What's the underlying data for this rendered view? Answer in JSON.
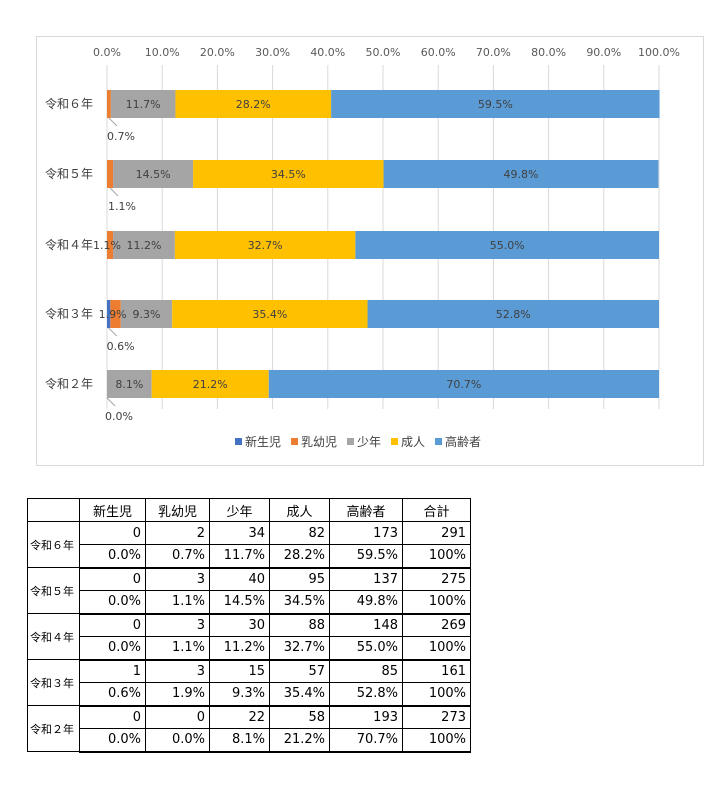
{
  "chart_data": {
    "type": "bar",
    "orientation": "horizontal",
    "stacked": true,
    "categories": [
      "令和６年",
      "令和５年",
      "令和４年",
      "令和３年",
      "令和２年"
    ],
    "x_ticks": [
      "0.0%",
      "10.0%",
      "20.0%",
      "30.0%",
      "40.0%",
      "50.0%",
      "60.0%",
      "70.0%",
      "80.0%",
      "90.0%",
      "100.0%"
    ],
    "xlim": [
      0,
      100
    ],
    "grid": true,
    "legend_position": "bottom",
    "series": [
      {
        "name": "新生児",
        "color": "#4472c4",
        "values": [
          0.0,
          0.0,
          0.0,
          0.6,
          0.0
        ],
        "labels": [
          "",
          "",
          "",
          "0.6%",
          "0.0%"
        ]
      },
      {
        "name": "乳幼児",
        "color": "#ed7d31",
        "values": [
          0.7,
          1.1,
          1.1,
          1.9,
          0.0
        ],
        "labels": [
          "0.7%",
          "1.1%",
          "1.1%",
          "1.9%",
          ""
        ]
      },
      {
        "name": "少年",
        "color": "#a5a5a5",
        "values": [
          11.7,
          14.5,
          11.2,
          9.3,
          8.1
        ],
        "labels": [
          "11.7%",
          "14.5%",
          "11.2%",
          "9.3%",
          "8.1%"
        ]
      },
      {
        "name": "成人",
        "color": "#ffc000",
        "values": [
          28.2,
          34.5,
          32.7,
          35.4,
          21.2
        ],
        "labels": [
          "28.2%",
          "34.5%",
          "32.7%",
          "35.4%",
          "21.2%"
        ]
      },
      {
        "name": "高齢者",
        "color": "#5b9bd5",
        "values": [
          59.5,
          49.8,
          55.0,
          52.8,
          70.7
        ],
        "labels": [
          "59.5%",
          "49.8%",
          "55.0%",
          "52.8%",
          "70.7%"
        ]
      }
    ]
  },
  "table": {
    "headers": [
      "",
      "新生児",
      "乳幼児",
      "少年",
      "成人",
      "高齢者",
      "合計"
    ],
    "rows": [
      {
        "year": "令和６年",
        "counts": [
          "0",
          "2",
          "34",
          "82",
          "173",
          "291"
        ],
        "percents": [
          "0.0%",
          "0.7%",
          "11.7%",
          "28.2%",
          "59.5%",
          "100%"
        ]
      },
      {
        "year": "令和５年",
        "counts": [
          "0",
          "3",
          "40",
          "95",
          "137",
          "275"
        ],
        "percents": [
          "0.0%",
          "1.1%",
          "14.5%",
          "34.5%",
          "49.8%",
          "100%"
        ]
      },
      {
        "year": "令和４年",
        "counts": [
          "0",
          "3",
          "30",
          "88",
          "148",
          "269"
        ],
        "percents": [
          "0.0%",
          "1.1%",
          "11.2%",
          "32.7%",
          "55.0%",
          "100%"
        ]
      },
      {
        "year": "令和３年",
        "counts": [
          "1",
          "3",
          "15",
          "57",
          "85",
          "161"
        ],
        "percents": [
          "0.6%",
          "1.9%",
          "9.3%",
          "35.4%",
          "52.8%",
          "100%"
        ]
      },
      {
        "year": "令和２年",
        "counts": [
          "0",
          "0",
          "22",
          "58",
          "193",
          "273"
        ],
        "percents": [
          "0.0%",
          "0.0%",
          "8.1%",
          "21.2%",
          "70.7%",
          "100%"
        ]
      }
    ]
  }
}
